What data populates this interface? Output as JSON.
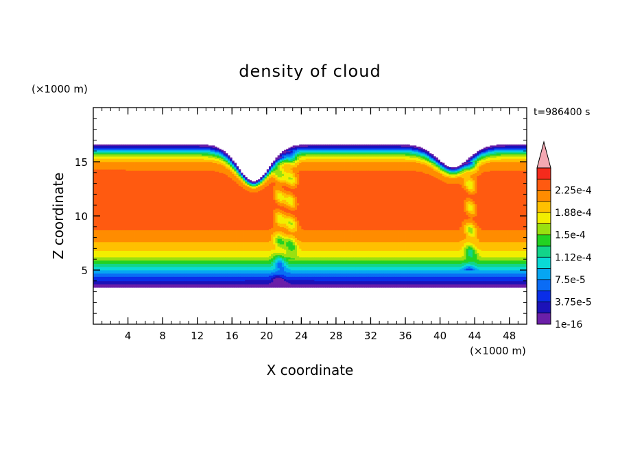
{
  "chart_data": {
    "type": "heatmap",
    "title": "density of cloud",
    "xlabel": "X coordinate",
    "ylabel": "Z coordinate",
    "x_unit": "(×1000 m)",
    "y_unit": "(×1000 m)",
    "time_label": "t=986400 s",
    "xlim": [
      0,
      50
    ],
    "ylim": [
      0,
      20
    ],
    "x_ticks": [
      4,
      8,
      12,
      16,
      20,
      24,
      28,
      32,
      36,
      40,
      44,
      48
    ],
    "y_ticks": [
      5,
      10,
      15
    ],
    "x_minor_step": 1,
    "y_minor_step": 1,
    "colorbar": {
      "levels": [
        1e-16,
        1.875e-05,
        3.75e-05,
        5.625e-05,
        7.5e-05,
        9.375e-05,
        0.0001125,
        0.00013125,
        0.00015,
        0.00016875,
        0.0001875,
        0.00020625,
        0.000225,
        0.00024375
      ],
      "tick_labels": [
        "1e-16",
        "3.75e-5",
        "7.5e-5",
        "1.12e-4",
        "1.5e-4",
        "1.88e-4",
        "2.25e-4"
      ],
      "colors": [
        "#6b1fa8",
        "#1c12b8",
        "#0a2ee8",
        "#0a6cf5",
        "#06a6f2",
        "#0ad9d6",
        "#12d48a",
        "#22d222",
        "#9ae010",
        "#f2ee00",
        "#ffc000",
        "#ff8c00",
        "#ff5a10",
        "#f52b1c"
      ],
      "over_color": "#f4a8b2",
      "extend": "max"
    },
    "cloud_layer": {
      "base_z": 3.4,
      "top_z": 16.6,
      "dips": [
        {
          "x": 18.5,
          "top_z": 13.2
        },
        {
          "x": 41.5,
          "top_z": 14.5
        }
      ],
      "columns": [
        {
          "x": 21.5,
          "z_range": [
            3.0,
            15.5
          ]
        },
        {
          "x": 22.8,
          "z_range": [
            6.0,
            16.0
          ]
        },
        {
          "x": 43.5,
          "z_range": [
            5.0,
            15.0
          ]
        }
      ],
      "profile": [
        {
          "z": 3.4,
          "value": 1e-16
        },
        {
          "z": 3.8,
          "value": 2.5e-05
        },
        {
          "z": 4.3,
          "value": 5e-05
        },
        {
          "z": 4.8,
          "value": 8e-05
        },
        {
          "z": 5.3,
          "value": 0.000115
        },
        {
          "z": 5.8,
          "value": 0.000145
        },
        {
          "z": 6.2,
          "value": 0.00017
        },
        {
          "z": 7.0,
          "value": 0.000195
        },
        {
          "z": 8.0,
          "value": 0.000215
        },
        {
          "z": 9.0,
          "value": 0.00023
        },
        {
          "z": 10.0,
          "value": 0.00024
        },
        {
          "z": 12.5,
          "value": 0.000242
        },
        {
          "z": 14.0,
          "value": 0.00023
        },
        {
          "z": 15.0,
          "value": 0.00021
        },
        {
          "z": 15.6,
          "value": 0.00016
        },
        {
          "z": 16.0,
          "value": 0.0001
        },
        {
          "z": 16.3,
          "value": 4e-05
        },
        {
          "z": 16.6,
          "value": 1e-16
        }
      ]
    }
  }
}
